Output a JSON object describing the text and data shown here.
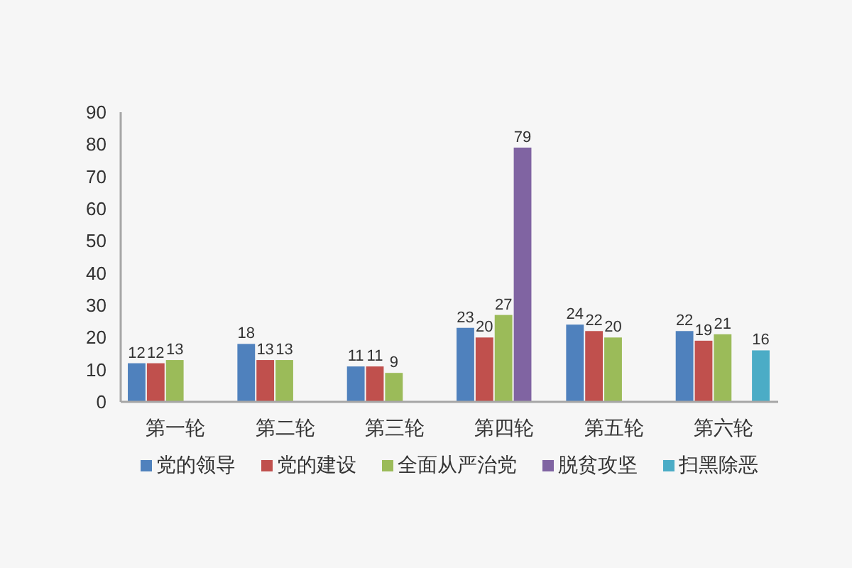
{
  "chart_data": {
    "type": "bar",
    "categories": [
      "第一轮",
      "第二轮",
      "第三轮",
      "第四轮",
      "第五轮",
      "第六轮"
    ],
    "series": [
      {
        "name": "党的领导",
        "color": "#4f81bd",
        "values": [
          12,
          18,
          11,
          23,
          24,
          22
        ]
      },
      {
        "name": "党的建设",
        "color": "#c0504d",
        "values": [
          12,
          13,
          11,
          20,
          22,
          19
        ]
      },
      {
        "name": "全面从严治党",
        "color": "#9bbb59",
        "values": [
          13,
          13,
          9,
          27,
          20,
          21
        ]
      },
      {
        "name": "脱贫攻坚",
        "color": "#8064a2",
        "values": [
          null,
          null,
          null,
          79,
          null,
          null
        ]
      },
      {
        "name": "扫黑除恶",
        "color": "#4bacc6",
        "values": [
          null,
          null,
          null,
          null,
          null,
          16
        ]
      }
    ],
    "ylim": [
      0,
      90
    ],
    "yticks": [
      0,
      10,
      20,
      30,
      40,
      50,
      60,
      70,
      80,
      90
    ],
    "data_labels": true,
    "legend": "bottom"
  }
}
